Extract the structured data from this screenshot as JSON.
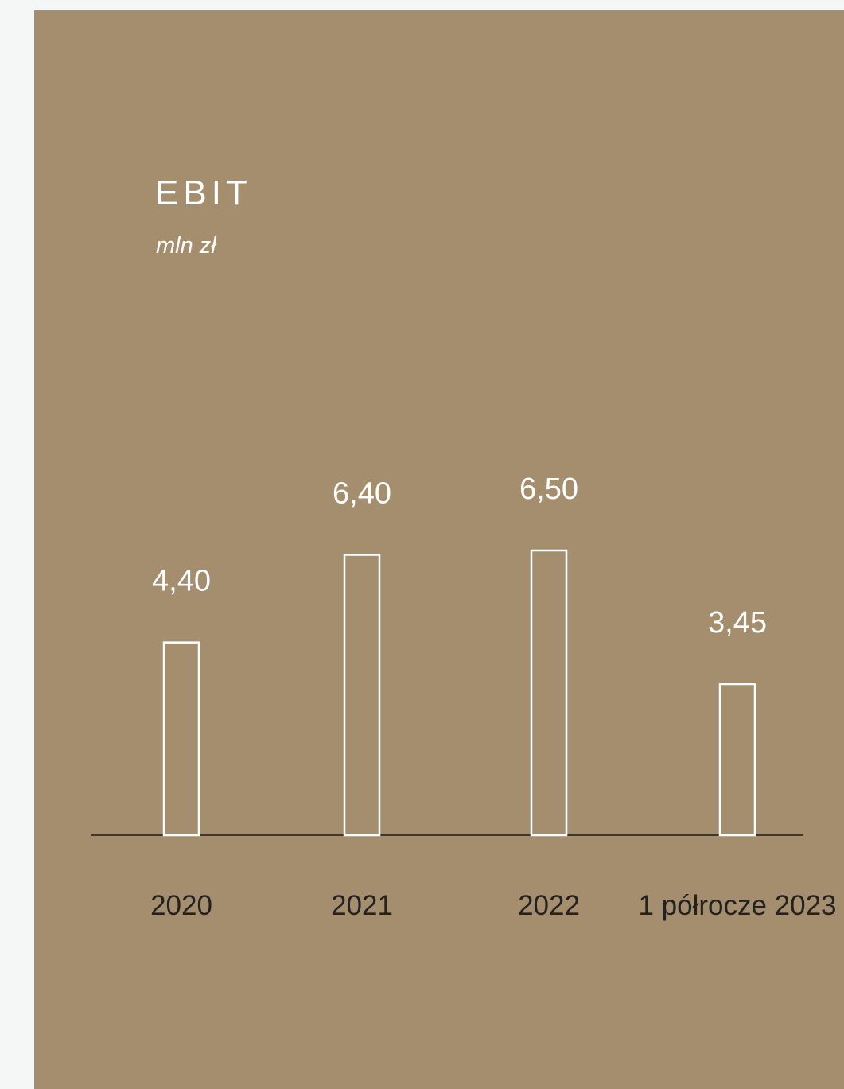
{
  "colors": {
    "page_background": "#f5f6f6",
    "panel_background": "#a48e6e",
    "title_text": "#ffffff",
    "value_label_text": "#ffffff",
    "category_label_text": "#222222",
    "bar_stroke": "#ffffff",
    "baseline": "#1a1a1a"
  },
  "chart_data": {
    "type": "bar",
    "title": "EBIT",
    "subtitle": "mln zł",
    "categories": [
      "2020",
      "2021",
      "2022",
      "1 półrocze 2023"
    ],
    "values": [
      4.4,
      6.4,
      6.5,
      3.45
    ],
    "value_labels": [
      "4,40",
      "6,40",
      "6,50",
      "3,45"
    ],
    "xlabel": "",
    "ylabel": "",
    "ylim": [
      0,
      6.5
    ],
    "grid": false,
    "legend": "none",
    "bar_style": "outline"
  }
}
